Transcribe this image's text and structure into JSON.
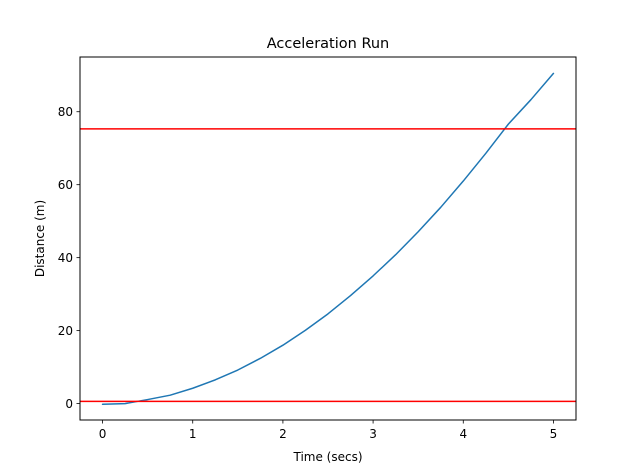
{
  "chart_data": {
    "type": "line",
    "title": "Acceleration Run",
    "xlabel": "Time (secs)",
    "ylabel": "Distance (m)",
    "xlim": [
      -0.25,
      5.25
    ],
    "ylim": [
      -4.5,
      95
    ],
    "xticks": [
      0,
      1,
      2,
      3,
      4,
      5
    ],
    "yticks": [
      0,
      20,
      40,
      60,
      80
    ],
    "grid": false,
    "series": [
      {
        "color": "#1f77b4",
        "x": [
          0,
          0.25,
          0.5,
          0.75,
          1,
          1.25,
          1.5,
          1.75,
          2,
          2.25,
          2.5,
          2.75,
          3,
          3.25,
          3.5,
          3.75,
          4,
          4.25,
          4.5,
          4.75,
          5
        ],
        "y": [
          -0.2,
          0.0,
          1.1,
          2.3,
          4.2,
          6.5,
          9.2,
          12.4,
          16.0,
          20.1,
          24.6,
          29.6,
          35.0,
          40.8,
          47.1,
          53.8,
          61.0,
          68.6,
          76.6,
          83.3,
          90.5
        ]
      }
    ],
    "hlines": [
      {
        "y": 75.3,
        "color": "#ff0000"
      },
      {
        "y": 0.6,
        "color": "#ff0000"
      }
    ]
  }
}
